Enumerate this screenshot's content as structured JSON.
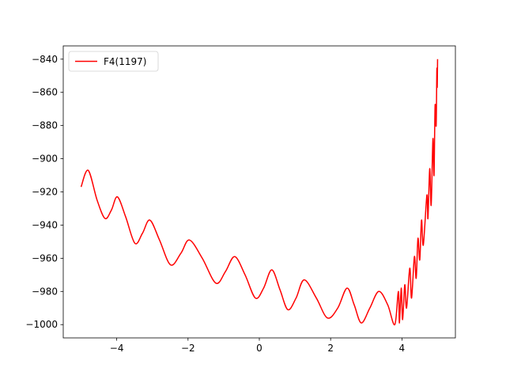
{
  "chart_data": {
    "type": "line",
    "x": [
      -5,
      -4.8,
      -4.55,
      -4.33,
      -4.15,
      -3.98,
      -3.75,
      -3.49,
      -3.28,
      -3.07,
      -2.8,
      -2.49,
      -2.2,
      -1.96,
      -1.6,
      -1.22,
      -0.95,
      -0.69,
      -0.4,
      -0.11,
      0.12,
      0.35,
      0.58,
      0.8,
      1.03,
      1.26,
      1.6,
      1.91,
      2.2,
      2.46,
      2.66,
      2.86,
      3.1,
      3.35,
      3.6,
      3.8,
      3.9,
      3.93,
      3.98,
      4.02,
      4.08,
      4.13,
      4.22,
      4.27,
      4.35,
      4.4,
      4.45,
      4.5,
      4.55,
      4.6,
      4.7,
      4.73,
      4.78,
      4.82,
      4.87,
      4.9,
      4.93,
      4.96,
      4.98,
      4.99,
      5.0
    ],
    "series": [
      {
        "name": "F4(1197)",
        "color": "#ff0000",
        "values": [
          -917,
          -907,
          -925,
          -936,
          -931,
          -923,
          -935,
          -951,
          -945,
          -937,
          -949,
          -964,
          -957,
          -949,
          -960,
          -975,
          -968,
          -959,
          -970,
          -984,
          -978,
          -967,
          -979,
          -991,
          -984,
          -973,
          -984,
          -996,
          -990,
          -978,
          -988,
          -999,
          -990,
          -980,
          -988,
          -1000,
          -980,
          -999,
          -978,
          -997,
          -976,
          -990,
          -966,
          -984,
          -959,
          -972,
          -948,
          -961,
          -937,
          -952,
          -922,
          -936,
          -906,
          -928,
          -888,
          -910,
          -868,
          -880,
          -846,
          -857,
          -840
        ]
      }
    ],
    "xlim": [
      -5.5,
      5.5
    ],
    "ylim": [
      -1008,
      -832
    ],
    "xticks": [
      {
        "value": -4,
        "label": "−4"
      },
      {
        "value": -2,
        "label": "−2"
      },
      0,
      2,
      4
    ],
    "yticks": [
      {
        "value": -1000,
        "label": "−1000"
      },
      {
        "value": -980,
        "label": "−980"
      },
      {
        "value": -960,
        "label": "−960"
      },
      {
        "value": -940,
        "label": "−940"
      },
      {
        "value": -920,
        "label": "−920"
      },
      {
        "value": -900,
        "label": "−900"
      },
      {
        "value": -880,
        "label": "−880"
      },
      {
        "value": -860,
        "label": "−860"
      },
      {
        "value": -840,
        "label": "−840"
      }
    ],
    "legend": "upper left",
    "grid": false
  }
}
